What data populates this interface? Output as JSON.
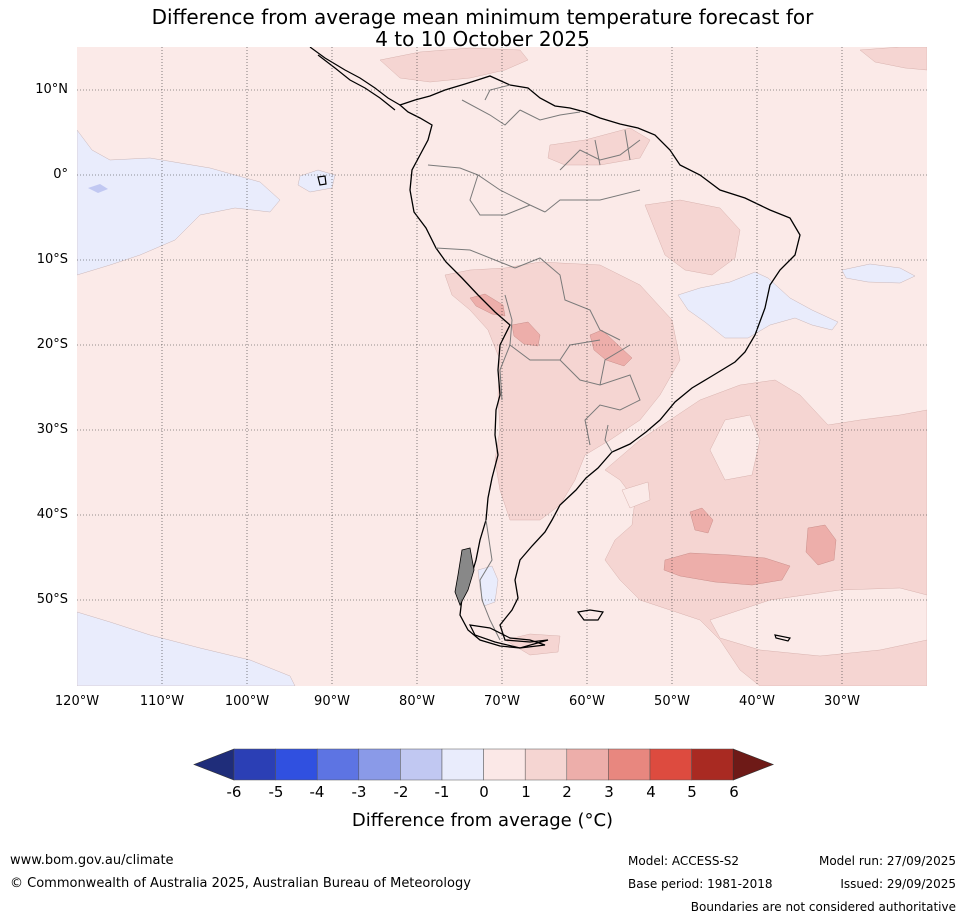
{
  "title": {
    "line1": "Difference from average mean minimum temperature forecast for",
    "line2": "4 to 10 October 2025"
  },
  "axes": {
    "latitudes": [
      "10°N",
      "0°",
      "10°S",
      "20°S",
      "30°S",
      "40°S",
      "50°S"
    ],
    "longitudes": [
      "120°W",
      "110°W",
      "100°W",
      "90°W",
      "80°W",
      "70°W",
      "60°W",
      "50°W",
      "40°W",
      "30°W"
    ]
  },
  "colorbar": {
    "ticks": [
      "-6",
      "-5",
      "-4",
      "-3",
      "-2",
      "-1",
      "0",
      "1",
      "2",
      "3",
      "4",
      "5",
      "6"
    ],
    "colors": [
      "#1f2d7a",
      "#2b3fb5",
      "#3050e0",
      "#5d74e3",
      "#8a9ae8",
      "#c1c8f2",
      "#e9ecfc",
      "#fbe8e7",
      "#f5d5d2",
      "#edaeaa",
      "#e8877f",
      "#dd4b3f",
      "#a92a22",
      "#6e1a17"
    ],
    "label": "Difference from average (°C)"
  },
  "footer": {
    "url": "www.bom.gov.au/climate",
    "copyright": "© Commonwealth of Australia 2025, Australian Bureau of Meteorology",
    "model": "Model: ACCESS-S2",
    "base_period": "Base period: 1981-2018",
    "model_run": "Model run: 27/09/2025",
    "issued": "Issued: 29/09/2025",
    "disclaimer": "Boundaries are not considered authoritative"
  }
}
